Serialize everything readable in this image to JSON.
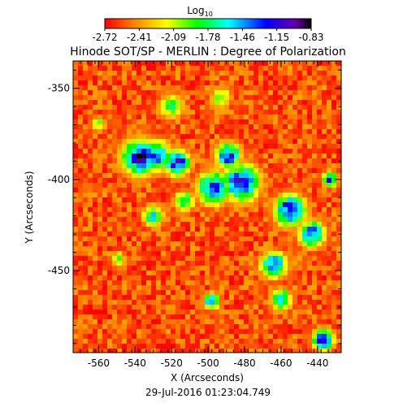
{
  "chart_data": {
    "type": "heatmap",
    "title": "Hinode SOT/SP - MERLIN : Degree of Polarization",
    "colorbar": {
      "label_main": "Log",
      "label_sub": "10",
      "tick_labels": [
        "-2.72",
        "-2.41",
        "-2.09",
        "-1.78",
        "-1.46",
        "-1.15",
        "-0.83"
      ],
      "range": [
        -2.72,
        -0.83
      ],
      "colormap": [
        "#ff0000",
        "#ff8800",
        "#ffff00",
        "#00ff00",
        "#00ffff",
        "#0000ff",
        "#000000"
      ]
    },
    "xlabel": "X (Arcseconds)",
    "ylabel": "Y (Arcseconds)",
    "xlim": [
      -574,
      -427
    ],
    "ylim": [
      -495,
      -335
    ],
    "x_ticks": [
      -560,
      -540,
      -520,
      -500,
      -480,
      -460,
      -440
    ],
    "y_ticks": [
      -350,
      -400,
      -450
    ],
    "x_tick_labels": [
      "-560",
      "-540",
      "-520",
      "-500",
      "-480",
      "-460",
      "-440"
    ],
    "y_tick_labels": [
      "-350",
      "-400",
      "-450"
    ],
    "date": "29-Jul-2016 01:23:04.749",
    "features": [
      {
        "x": -537,
        "y": -388,
        "radius": 7,
        "value": -0.95
      },
      {
        "x": -528,
        "y": -387,
        "radius": 6,
        "value": -1.3
      },
      {
        "x": -517,
        "y": -391,
        "radius": 5,
        "value": -1.0
      },
      {
        "x": -482,
        "y": -402,
        "radius": 7,
        "value": -1.0
      },
      {
        "x": -489,
        "y": -387,
        "radius": 5,
        "value": -1.15
      },
      {
        "x": -497,
        "y": -405,
        "radius": 6,
        "value": -1.05
      },
      {
        "x": -478,
        "y": -396,
        "radius": 4,
        "value": -1.6
      },
      {
        "x": -455,
        "y": -417,
        "radius": 6,
        "value": -1.0
      },
      {
        "x": -443,
        "y": -430,
        "radius": 5,
        "value": -1.1
      },
      {
        "x": -513,
        "y": -412,
        "radius": 4,
        "value": -1.6
      },
      {
        "x": -530,
        "y": -420,
        "radius": 4,
        "value": -1.5
      },
      {
        "x": -520,
        "y": -360,
        "radius": 5,
        "value": -1.8
      },
      {
        "x": -493,
        "y": -355,
        "radius": 4,
        "value": -1.8
      },
      {
        "x": -464,
        "y": -447,
        "radius": 5,
        "value": -1.15
      },
      {
        "x": -460,
        "y": -466,
        "radius": 4,
        "value": -1.3
      },
      {
        "x": -437,
        "y": -488,
        "radius": 4,
        "value": -1.0
      },
      {
        "x": -498,
        "y": -467,
        "radius": 3,
        "value": -1.2
      },
      {
        "x": -549,
        "y": -444,
        "radius": 3,
        "value": -1.9
      },
      {
        "x": -560,
        "y": -370,
        "radius": 3,
        "value": -1.9
      },
      {
        "x": -433,
        "y": -400,
        "radius": 3,
        "value": -1.3
      }
    ]
  }
}
